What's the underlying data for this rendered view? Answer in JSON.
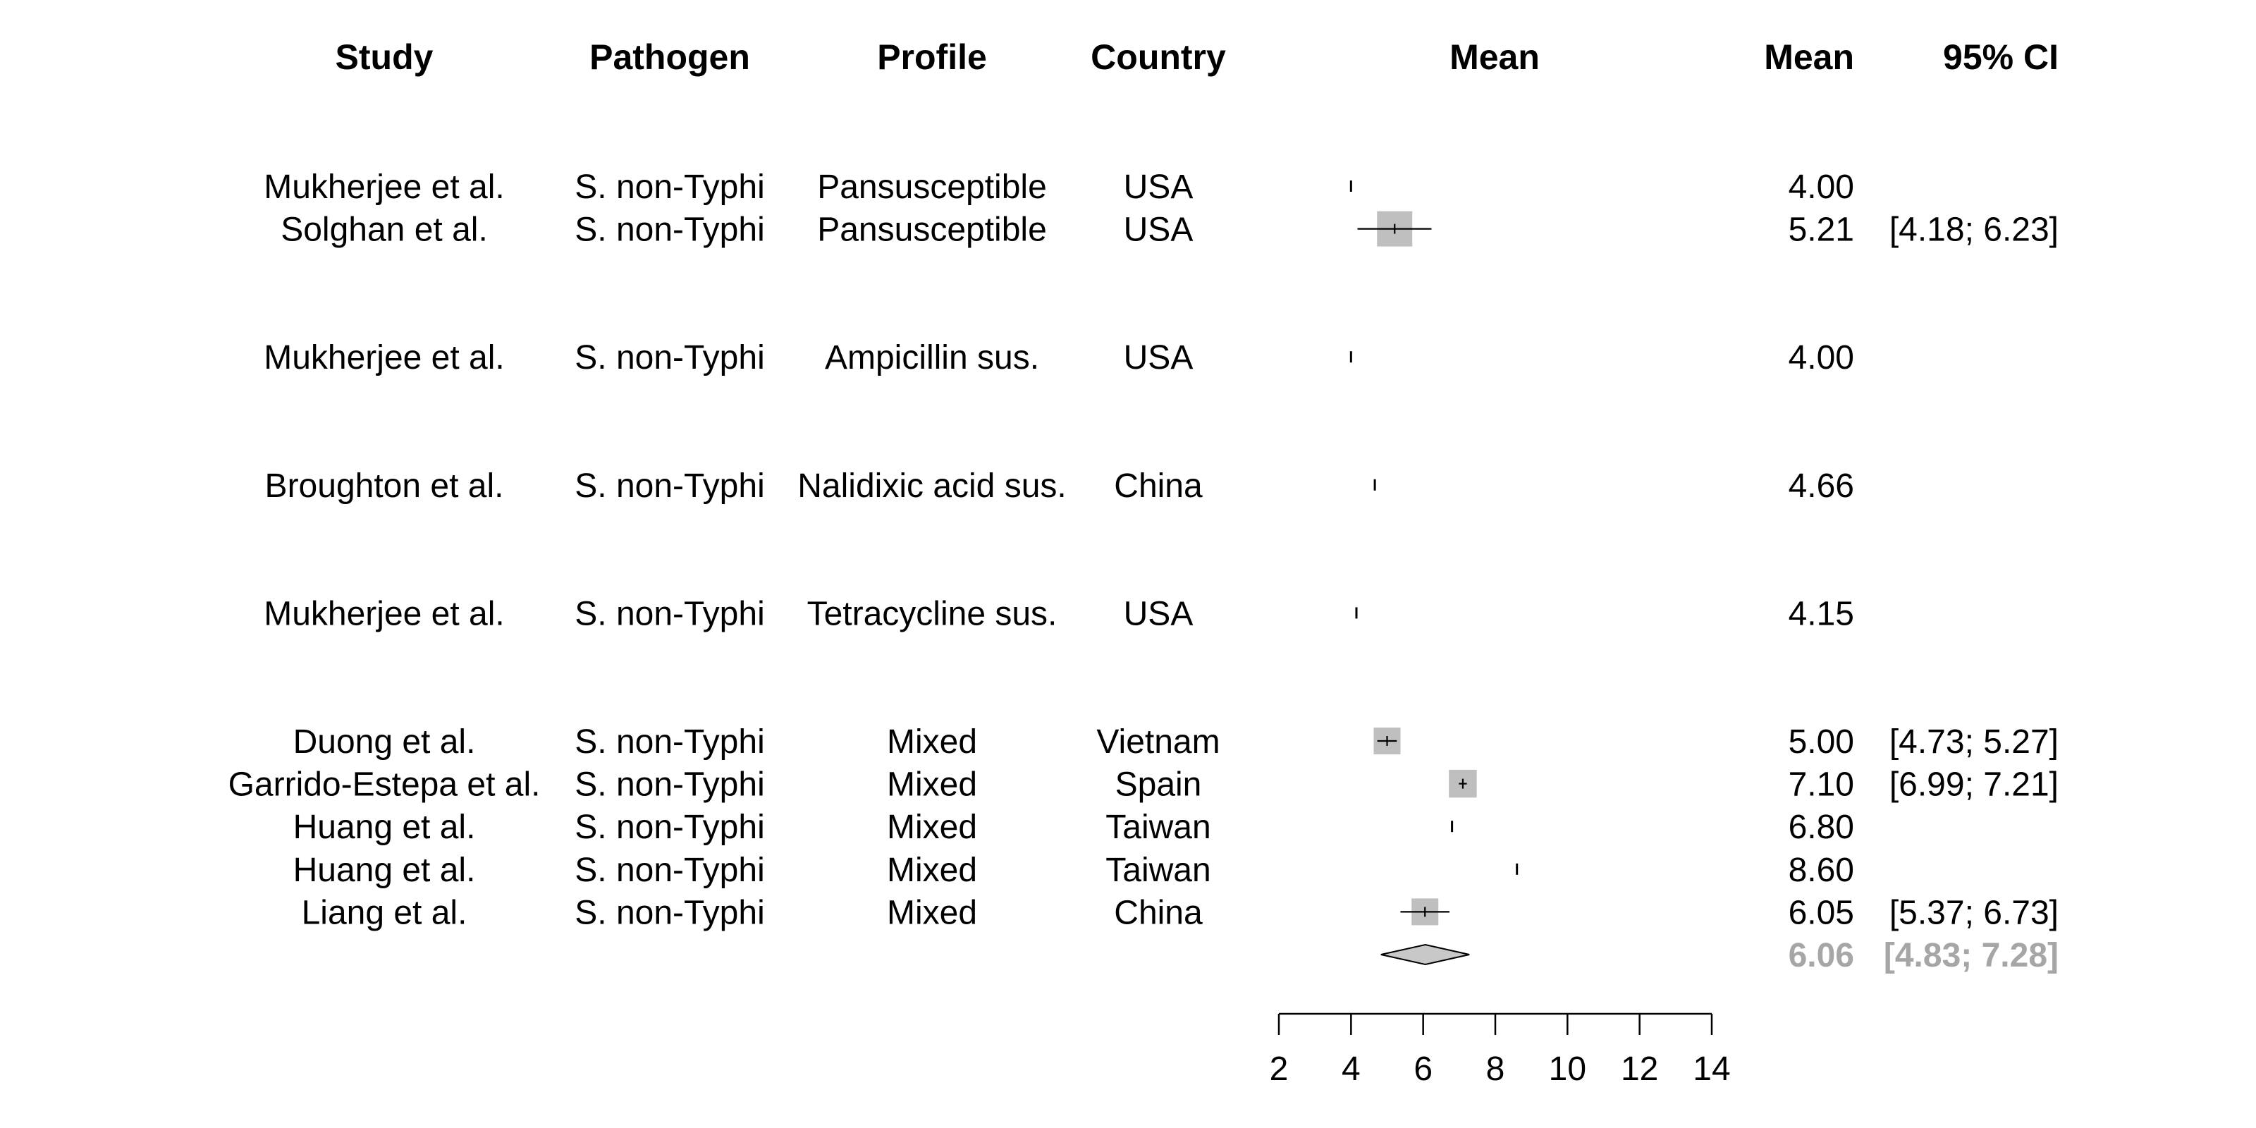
{
  "chart_data": {
    "type": "forest",
    "columns": {
      "study": "Study",
      "pathogen": "Pathogen",
      "profile": "Profile",
      "country": "Country",
      "plot": "Mean",
      "mean": "Mean",
      "ci": "95% CI"
    },
    "xaxis": {
      "range": [
        2,
        14
      ],
      "ticks": [
        "2",
        "4",
        "6",
        "8",
        "10",
        "12",
        "14"
      ]
    },
    "groups": [
      {
        "rows": [
          {
            "study": "Mukherjee et al.",
            "pathogen": "S. non-Typhi",
            "profile": "Pansusceptible",
            "country": "USA",
            "mean": 4.0,
            "mean_label": "4.00",
            "ci": null,
            "ci_label": "",
            "weight": 0
          },
          {
            "study": "Solghan et al.",
            "pathogen": "S. non-Typhi",
            "profile": "Pansusceptible",
            "country": "USA",
            "mean": 5.21,
            "mean_label": "5.21",
            "ci": [
              4.18,
              6.23
            ],
            "ci_label": "[4.18; 6.23]",
            "weight": 1.0
          }
        ]
      },
      {
        "rows": [
          {
            "study": "Mukherjee et al.",
            "pathogen": "S. non-Typhi",
            "profile": "Ampicillin sus.",
            "country": "USA",
            "mean": 4.0,
            "mean_label": "4.00",
            "ci": null,
            "ci_label": "",
            "weight": 0
          }
        ]
      },
      {
        "rows": [
          {
            "study": "Broughton et al.",
            "pathogen": "S. non-Typhi",
            "profile": "Nalidixic acid sus.",
            "country": "China",
            "mean": 4.66,
            "mean_label": "4.66",
            "ci": null,
            "ci_label": "",
            "weight": 0
          }
        ]
      },
      {
        "rows": [
          {
            "study": "Mukherjee et al.",
            "pathogen": "S. non-Typhi",
            "profile": "Tetracycline sus.",
            "country": "USA",
            "mean": 4.15,
            "mean_label": "4.15",
            "ci": null,
            "ci_label": "",
            "weight": 0
          }
        ]
      },
      {
        "rows": [
          {
            "study": "Duong et al.",
            "pathogen": "S. non-Typhi",
            "profile": "Mixed",
            "country": "Vietnam",
            "mean": 5.0,
            "mean_label": "5.00",
            "ci": [
              4.73,
              5.27
            ],
            "ci_label": "[4.73; 5.27]",
            "weight": 0.6
          },
          {
            "study": "Garrido-Estepa et al.",
            "pathogen": "S. non-Typhi",
            "profile": "Mixed",
            "country": "Spain",
            "mean": 7.1,
            "mean_label": "7.10",
            "ci": [
              6.99,
              7.21
            ],
            "ci_label": "[6.99; 7.21]",
            "weight": 0.65
          },
          {
            "study": "Huang et al.",
            "pathogen": "S. non-Typhi",
            "profile": "Mixed",
            "country": "Taiwan",
            "mean": 6.8,
            "mean_label": "6.80",
            "ci": null,
            "ci_label": "",
            "weight": 0
          },
          {
            "study": "Huang et al.",
            "pathogen": "S. non-Typhi",
            "profile": "Mixed",
            "country": "Taiwan",
            "mean": 8.6,
            "mean_label": "8.60",
            "ci": null,
            "ci_label": "",
            "weight": 0
          },
          {
            "study": "Liang et al.",
            "pathogen": "S. non-Typhi",
            "profile": "Mixed",
            "country": "China",
            "mean": 6.05,
            "mean_label": "6.05",
            "ci": [
              5.37,
              6.73
            ],
            "ci_label": "[5.37; 6.73]",
            "weight": 0.6
          }
        ],
        "summary": {
          "mean": 6.06,
          "mean_label": "6.06",
          "ci": [
            4.83,
            7.28
          ],
          "ci_label": "[4.83; 7.28]"
        }
      }
    ],
    "colors": {
      "box": "#bfbfbf",
      "diamond": "#c8c8c8",
      "summary_text": "#a6a6a6",
      "line": "#000000"
    }
  }
}
